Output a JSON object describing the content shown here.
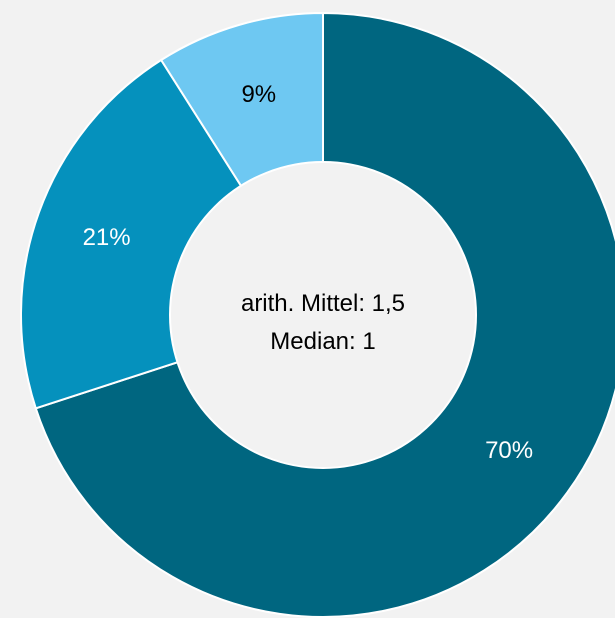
{
  "chart_data": {
    "type": "pie",
    "variant": "donut",
    "slices": [
      {
        "value": 70,
        "label": "70%",
        "color": "#006680",
        "label_color": "#ffffff"
      },
      {
        "value": 21,
        "label": "21%",
        "color": "#0591bd",
        "label_color": "#ffffff"
      },
      {
        "value": 9,
        "label": "9%",
        "color": "#6ec8f2",
        "label_color": "#000000"
      }
    ],
    "start_angle_deg": 0,
    "direction": "clockwise",
    "center_text": [
      "arith. Mittel: 1,5",
      "Median: 1"
    ],
    "background_color": "#f2f2f2",
    "separator_color": "#ffffff"
  }
}
